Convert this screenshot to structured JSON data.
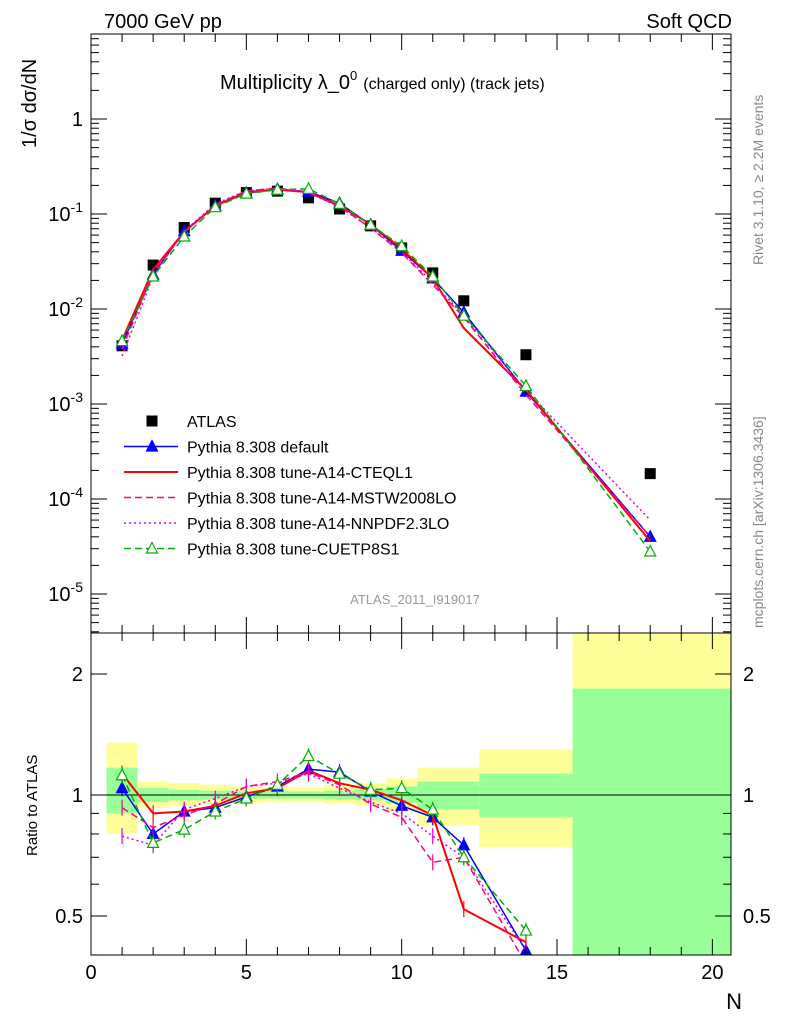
{
  "header": {
    "left": "7000 GeV pp",
    "right": "Soft QCD"
  },
  "title": {
    "main": "Multiplicity λ_0",
    "sup": "0",
    "tail": "(charged only) (track jets)"
  },
  "side_labels": {
    "rivet": "Rivet 3.1.10, ≥ 2.2M events",
    "mcplots": "mcplots.cern.ch [arXiv:1306.3436]"
  },
  "watermark": "ATLAS_2011_I919017",
  "chart_data": [
    {
      "type": "scatter",
      "panel": "main",
      "ylabel": "1/σ dσ/dN",
      "xlabel": "N",
      "xlim": [
        0,
        20.6
      ],
      "ylim": [
        4e-06,
        8
      ],
      "yscale": "log",
      "y_tick_labels": [
        "10^-5",
        "10^-4",
        "10^-3",
        "10^-2",
        "10^-1",
        "1"
      ],
      "legend_placement": "lower-left",
      "series": [
        {
          "name": "ATLAS",
          "color": "#000000",
          "marker": "square",
          "line": "none",
          "x": [
            1,
            2,
            3,
            4,
            5,
            6,
            7,
            8,
            9,
            10,
            11,
            12,
            14,
            18
          ],
          "y": [
            0.0041,
            0.029,
            0.072,
            0.13,
            0.168,
            0.174,
            0.148,
            0.113,
            0.075,
            0.044,
            0.024,
            0.0122,
            0.0033,
            0.000185
          ]
        },
        {
          "name": "Pythia 8.308 default",
          "color": "#0000ff",
          "marker": "triangle-filled",
          "line": "solid",
          "x": [
            1,
            2,
            3,
            4,
            5,
            6,
            7,
            8,
            9,
            10,
            11,
            12,
            14,
            18
          ],
          "y": [
            0.0043,
            0.023,
            0.066,
            0.122,
            0.166,
            0.182,
            0.172,
            0.13,
            0.077,
            0.041,
            0.021,
            0.0092,
            0.00135,
            4e-05
          ]
        },
        {
          "name": "Pythia 8.308 tune-A14-CTEQL1",
          "color": "#ff0000",
          "marker": "none",
          "line": "solid",
          "x": [
            1,
            2,
            3,
            4,
            5,
            6,
            7,
            8,
            9,
            10,
            11,
            12,
            14,
            18
          ],
          "y": [
            0.0047,
            0.026,
            0.065,
            0.122,
            0.17,
            0.18,
            0.17,
            0.122,
            0.078,
            0.043,
            0.021,
            0.0063,
            0.0014,
            3.6e-05
          ]
        },
        {
          "name": "Pythia 8.308 tune-A14-MSTW2008LO",
          "color": "#ff0080",
          "marker": "none",
          "line": "dashed",
          "x": [
            1,
            2,
            3,
            4,
            5,
            6,
            7,
            8,
            9,
            10,
            11,
            12,
            14,
            18
          ],
          "y": [
            0.0038,
            0.024,
            0.064,
            0.125,
            0.175,
            0.188,
            0.168,
            0.12,
            0.071,
            0.039,
            0.018,
            0.0082,
            0.00125,
            4e-05
          ]
        },
        {
          "name": "Pythia 8.308 tune-A14-NNPDF2.3LO",
          "color": "#e000e0",
          "marker": "none",
          "line": "dotted",
          "x": [
            1,
            2,
            3,
            4,
            5,
            6,
            7,
            8,
            9,
            10,
            11,
            12,
            14,
            18
          ],
          "y": [
            0.0032,
            0.022,
            0.066,
            0.128,
            0.176,
            0.186,
            0.168,
            0.118,
            0.072,
            0.04,
            0.019,
            0.0085,
            0.0014,
            6e-05
          ]
        },
        {
          "name": "Pythia 8.308 tune-CUETP8S1",
          "color": "#00b000",
          "marker": "triangle-open",
          "line": "dashed",
          "x": [
            1,
            2,
            3,
            4,
            5,
            6,
            7,
            8,
            9,
            10,
            11,
            12,
            14,
            18
          ],
          "y": [
            0.0046,
            0.022,
            0.058,
            0.118,
            0.164,
            0.18,
            0.184,
            0.128,
            0.077,
            0.046,
            0.022,
            0.0085,
            0.00155,
            2.8e-05
          ]
        }
      ]
    },
    {
      "type": "line",
      "panel": "ratio",
      "ylabel": "Ratio to ATLAS",
      "xlabel": "N",
      "xlim": [
        0,
        20.6
      ],
      "ylim": [
        0.35,
        2.35
      ],
      "yscale": "log",
      "y_ticks": [
        0.5,
        1,
        2
      ],
      "y_tick_labels": [
        "0.5",
        "1",
        "2"
      ],
      "x_ticks": [
        0,
        5,
        10,
        15,
        20
      ],
      "x_tick_labels": [
        "0",
        "5",
        "10",
        "15",
        "20"
      ],
      "uncertainty_bands": {
        "stat_color": "#99ff99",
        "total_color": "#ffff99",
        "bins": [
          {
            "x0": 0.5,
            "x1": 1.5,
            "total": [
              0.8,
              1.35
            ],
            "stat": [
              0.9,
              1.17
            ]
          },
          {
            "x0": 1.5,
            "x1": 2.5,
            "total": [
              0.93,
              1.08
            ],
            "stat": [
              0.96,
              1.04
            ]
          },
          {
            "x0": 2.5,
            "x1": 3.5,
            "total": [
              0.94,
              1.07
            ],
            "stat": [
              0.97,
              1.03
            ]
          },
          {
            "x0": 3.5,
            "x1": 4.5,
            "total": [
              0.95,
              1.06
            ],
            "stat": [
              0.975,
              1.025
            ]
          },
          {
            "x0": 4.5,
            "x1": 5.5,
            "total": [
              0.955,
              1.05
            ],
            "stat": [
              0.98,
              1.02
            ]
          },
          {
            "x0": 5.5,
            "x1": 6.5,
            "total": [
              0.96,
              1.045
            ],
            "stat": [
              0.98,
              1.02
            ]
          },
          {
            "x0": 6.5,
            "x1": 7.5,
            "total": [
              0.96,
              1.045
            ],
            "stat": [
              0.98,
              1.02
            ]
          },
          {
            "x0": 7.5,
            "x1": 8.5,
            "total": [
              0.95,
              1.06
            ],
            "stat": [
              0.975,
              1.025
            ]
          },
          {
            "x0": 8.5,
            "x1": 9.5,
            "total": [
              0.94,
              1.07
            ],
            "stat": [
              0.97,
              1.035
            ]
          },
          {
            "x0": 9.5,
            "x1": 10.5,
            "total": [
              0.91,
              1.1
            ],
            "stat": [
              0.955,
              1.05
            ]
          },
          {
            "x0": 10.5,
            "x1": 12.5,
            "total": [
              0.84,
              1.17
            ],
            "stat": [
              0.92,
              1.08
            ]
          },
          {
            "x0": 12.5,
            "x1": 15.5,
            "total": [
              0.74,
              1.3
            ],
            "stat": [
              0.88,
              1.13
            ]
          },
          {
            "x0": 15.5,
            "x1": 20.6,
            "total": [
              0.3,
              3.0
            ],
            "stat": [
              0.3,
              1.84
            ]
          }
        ]
      },
      "series": [
        {
          "name": "Pythia 8.308 default",
          "color": "#0000ff",
          "marker": "triangle-filled",
          "line": "solid",
          "x": [
            1,
            2,
            3,
            4,
            5,
            6,
            7,
            8,
            9,
            10,
            11,
            12,
            14
          ],
          "y": [
            1.04,
            0.8,
            0.91,
            0.93,
            0.99,
            1.05,
            1.16,
            1.14,
            1.02,
            0.94,
            0.88,
            0.75,
            0.41
          ]
        },
        {
          "name": "Pythia 8.308 tune-A14-CTEQL1",
          "color": "#ff0000",
          "marker": "none",
          "line": "solid",
          "x": [
            1,
            2,
            3,
            4,
            5,
            6,
            7,
            8,
            9,
            10,
            11,
            12,
            14
          ],
          "y": [
            1.13,
            0.9,
            0.91,
            0.94,
            1.01,
            1.04,
            1.15,
            1.07,
            1.03,
            0.97,
            0.89,
            0.52,
            0.43
          ]
        },
        {
          "name": "Pythia 8.308 tune-A14-MSTW2008LO",
          "color": "#ff0080",
          "marker": "none",
          "line": "dashed",
          "x": [
            1,
            2,
            3,
            4,
            5,
            6,
            7,
            8,
            9,
            10,
            11,
            12,
            14
          ],
          "y": [
            0.93,
            0.83,
            0.89,
            0.95,
            1.05,
            1.08,
            1.14,
            1.06,
            0.95,
            0.88,
            0.68,
            0.7,
            0.38
          ]
        },
        {
          "name": "Pythia 8.308 tune-A14-NNPDF2.3LO",
          "color": "#e000e0",
          "marker": "none",
          "line": "dotted",
          "x": [
            1,
            2,
            3,
            4,
            5,
            6,
            7,
            8,
            9,
            10,
            11,
            12,
            14
          ],
          "y": [
            0.79,
            0.75,
            0.92,
            0.98,
            1.05,
            1.07,
            1.13,
            1.04,
            0.96,
            0.9,
            0.79,
            0.7,
            0.41
          ]
        },
        {
          "name": "Pythia 8.308 tune-CUETP8S1",
          "color": "#00b000",
          "marker": "triangle-open",
          "line": "dashed",
          "x": [
            1,
            2,
            3,
            4,
            5,
            6,
            7,
            8,
            9,
            10,
            11,
            12,
            14
          ],
          "y": [
            1.12,
            0.76,
            0.82,
            0.91,
            0.98,
            1.06,
            1.25,
            1.13,
            1.03,
            1.04,
            0.92,
            0.7,
            0.46
          ]
        }
      ]
    }
  ]
}
